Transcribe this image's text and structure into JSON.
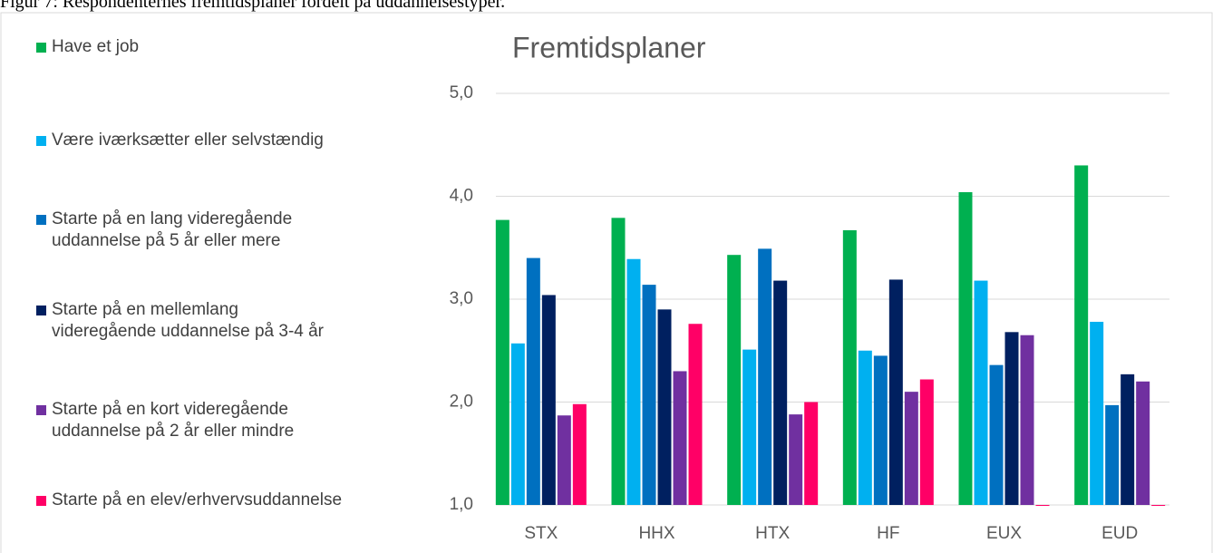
{
  "caption": "Figur 7: Respondenternes fremtidsplaner fordelt på uddannelsestyper.",
  "chart_data": {
    "type": "bar",
    "title": "Fremtidsplaner",
    "categories": [
      "STX",
      "HHX",
      "HTX",
      "HF",
      "EUX",
      "EUD"
    ],
    "series": [
      {
        "name": "Have et job",
        "color": "#00b050",
        "values": [
          3.77,
          3.79,
          3.43,
          3.67,
          4.04,
          4.3
        ]
      },
      {
        "name": "Være iværksætter eller selvstændig",
        "color": "#00b0f0",
        "values": [
          2.57,
          3.39,
          2.51,
          2.5,
          3.18,
          2.78
        ]
      },
      {
        "name": "Starte på en lang videregående uddannelse på 5 år eller mere",
        "color": "#0070c0",
        "values": [
          3.4,
          3.14,
          3.49,
          2.45,
          2.36,
          1.97
        ]
      },
      {
        "name": "Starte på en mellemlang videregående uddannelse på 3-4 år",
        "color": "#002060",
        "values": [
          3.04,
          2.9,
          3.18,
          3.19,
          2.68,
          2.27
        ]
      },
      {
        "name": "Starte på en kort videregående uddannelse på 2 år eller mindre",
        "color": "#7030a0",
        "values": [
          1.87,
          2.3,
          1.88,
          2.1,
          2.65,
          2.2
        ]
      },
      {
        "name": "Starte på en elev/erhvervsuddannelse",
        "color": "#ff0066",
        "values": [
          1.98,
          2.76,
          2.0,
          2.22,
          1.0,
          1.0
        ]
      }
    ],
    "ylim": [
      1,
      5
    ],
    "yticks": [
      {
        "value": 1,
        "label": "1,0"
      },
      {
        "value": 2,
        "label": "2,0"
      },
      {
        "value": 3,
        "label": "3,0"
      },
      {
        "value": 4,
        "label": "4,0"
      },
      {
        "value": 5,
        "label": "5,0"
      }
    ],
    "grid": true,
    "legend": "left"
  }
}
